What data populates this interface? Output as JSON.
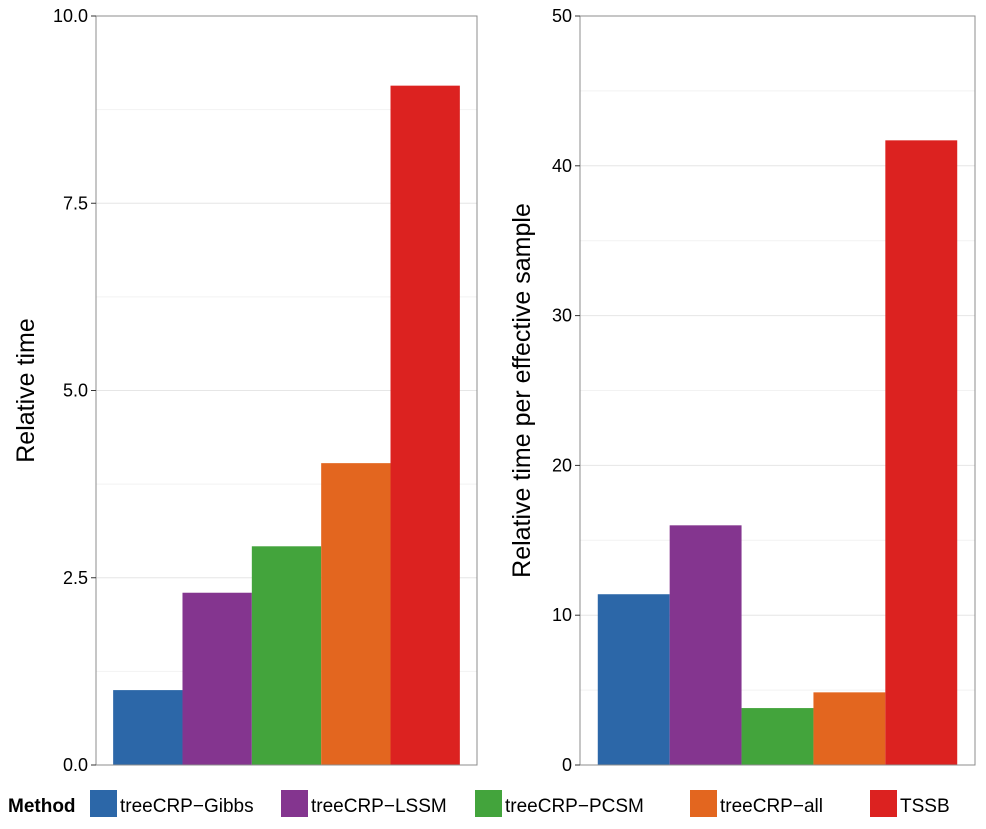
{
  "chart_data": [
    {
      "type": "bar",
      "ylabel": "Relative time",
      "xlabel": "",
      "ylim": [
        0,
        10
      ],
      "yticks": [
        0,
        2.5,
        5,
        7.5,
        10
      ],
      "ytick_labels": [
        "0.0",
        "2.5",
        "5.0",
        "7.5",
        "10.0"
      ],
      "categories": [
        "treeCRP-Gibbs",
        "treeCRP-LSSM",
        "treeCRP-PCSM",
        "treeCRP-all",
        "TSSB"
      ],
      "values": [
        1.0,
        2.3,
        2.92,
        4.03,
        9.07
      ],
      "grid": true
    },
    {
      "type": "bar",
      "ylabel": "Relative time per effective sample",
      "xlabel": "",
      "ylim": [
        0,
        50
      ],
      "yticks": [
        0,
        10,
        20,
        30,
        40,
        50
      ],
      "ytick_labels": [
        "0",
        "10",
        "20",
        "30",
        "40",
        "50"
      ],
      "categories": [
        "treeCRP-Gibbs",
        "treeCRP-LSSM",
        "treeCRP-PCSM",
        "treeCRP-all",
        "TSSB"
      ],
      "values": [
        11.4,
        16.0,
        3.8,
        4.85,
        41.7
      ],
      "grid": true
    }
  ],
  "legend": {
    "title": "Method",
    "placement": "bottom",
    "items": [
      {
        "label": "treeCRP−Gibbs",
        "color": "#2c67a8"
      },
      {
        "label": "treeCRP−LSSM",
        "color": "#84358f"
      },
      {
        "label": "treeCRP−PCSM",
        "color": "#43a43c"
      },
      {
        "label": "treeCRP−all",
        "color": "#e3661f"
      },
      {
        "label": "TSSB",
        "color": "#dc2220"
      }
    ]
  }
}
